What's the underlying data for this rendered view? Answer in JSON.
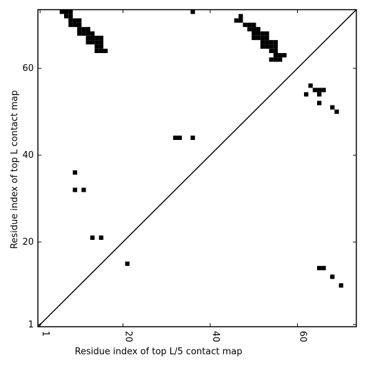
{
  "chart_data": {
    "type": "scatter",
    "xlabel": "Residue index of top L/5 contact map",
    "ylabel": "Residue index of top L contact map",
    "xlim": [
      0.5,
      73.5
    ],
    "ylim": [
      0.5,
      73.5
    ],
    "xticks": [
      1,
      20,
      40,
      60
    ],
    "yticks": [
      1,
      20,
      40,
      60
    ],
    "color": "#000000",
    "diagonal": true,
    "x": [
      6,
      7,
      8,
      7,
      8,
      8,
      9,
      10,
      8,
      9,
      10,
      10,
      11,
      12,
      10,
      11,
      12,
      13,
      12,
      13,
      14,
      15,
      12,
      13,
      14,
      15,
      14,
      15,
      14,
      15,
      16,
      36,
      47,
      46,
      47,
      48,
      49,
      50,
      49,
      50,
      51,
      50,
      51,
      52,
      53,
      50,
      51,
      52,
      53,
      52,
      53,
      54,
      55,
      52,
      53,
      54,
      55,
      54,
      55,
      55,
      56,
      57,
      54,
      55,
      56,
      32,
      33,
      36,
      9,
      9,
      11,
      13,
      15,
      21,
      65,
      66,
      68,
      70,
      62,
      63,
      64,
      65,
      66,
      65,
      65,
      68,
      69
    ],
    "values": [
      73,
      73,
      73,
      72,
      72,
      71,
      71,
      71,
      70,
      70,
      70,
      69,
      69,
      69,
      68,
      68,
      68,
      68,
      67,
      67,
      67,
      67,
      66,
      66,
      66,
      66,
      65,
      65,
      64,
      64,
      64,
      73,
      72,
      71,
      71,
      70,
      70,
      70,
      69,
      69,
      69,
      68,
      68,
      68,
      68,
      67,
      67,
      67,
      67,
      66,
      66,
      66,
      66,
      65,
      65,
      65,
      65,
      64,
      64,
      63,
      63,
      63,
      62,
      62,
      62,
      44,
      44,
      44,
      36,
      32,
      32,
      21,
      21,
      15,
      14,
      14,
      12,
      10,
      54,
      56,
      55,
      55,
      55,
      54,
      52,
      51,
      50
    ]
  }
}
